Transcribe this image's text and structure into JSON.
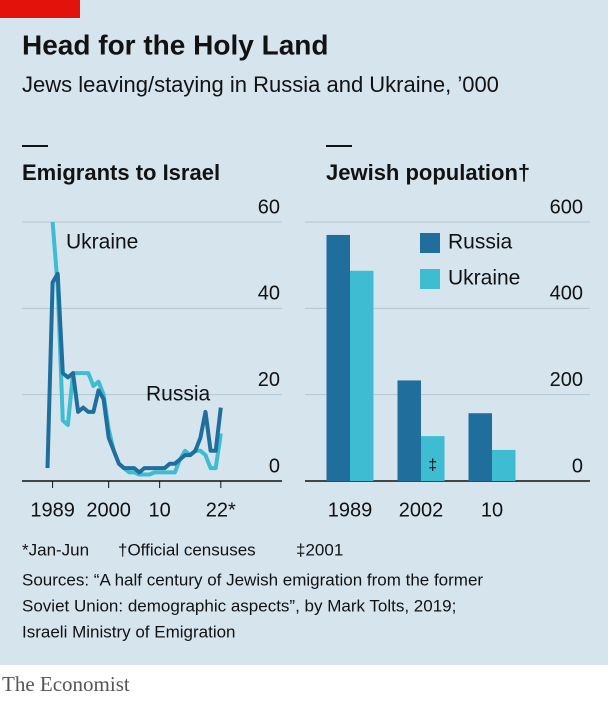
{
  "header": {
    "title": "Head for the Holy Land",
    "subtitle": "Jews leaving/staying in Russia and Ukraine, ’000"
  },
  "chart_data": [
    {
      "type": "line",
      "title": "Emigrants to Israel",
      "x": [
        1988,
        1989,
        1990,
        1991,
        1992,
        1993,
        1994,
        1995,
        1996,
        1997,
        1998,
        1999,
        2000,
        2001,
        2002,
        2003,
        2004,
        2005,
        2006,
        2007,
        2008,
        2009,
        2010,
        2011,
        2012,
        2013,
        2014,
        2015,
        2016,
        2017,
        2018,
        2019,
        2020,
        2021,
        2022
      ],
      "series": [
        {
          "name": "Ukraine",
          "color": "#3ebcd2",
          "values": [
            null,
            60,
            45,
            14,
            13,
            25,
            25,
            25,
            25,
            22,
            23,
            20,
            12,
            7,
            4,
            3,
            2,
            2,
            1.5,
            1.5,
            1.5,
            2,
            2,
            2,
            2,
            2,
            5,
            7,
            6,
            7,
            7,
            6,
            3,
            3,
            11
          ]
        },
        {
          "name": "Russia",
          "color": "#1f6e9c",
          "values": [
            3,
            46,
            48,
            25,
            24,
            25,
            16,
            17,
            16,
            16,
            21,
            19,
            10,
            7,
            4,
            3,
            3,
            3,
            2,
            3,
            3,
            3,
            3,
            3,
            4,
            4,
            5,
            6,
            6,
            7,
            10,
            16,
            7,
            7,
            17
          ]
        }
      ],
      "xlim": [
        1983,
        2034
      ],
      "xticks": [
        1989,
        2000,
        {
          "value": 2010,
          "label": "10"
        },
        {
          "value": 2022,
          "label": "22*"
        }
      ],
      "ylim": [
        0,
        60
      ],
      "yticks": [
        0,
        20,
        40,
        60
      ],
      "grid": true
    },
    {
      "type": "bar",
      "title": "Jewish population†",
      "categories": [
        "1989",
        "2002",
        "10"
      ],
      "series": [
        {
          "name": "Russia",
          "color": "#1f6e9c",
          "values": [
            570,
            233,
            157
          ]
        },
        {
          "name": "Ukraine",
          "color": "#3ebcd2",
          "values": [
            487,
            104,
            72
          ]
        }
      ],
      "ylim": [
        0,
        600
      ],
      "yticks": [
        0,
        200,
        400,
        600
      ],
      "grid": true,
      "legend": "upper center",
      "annotation": "‡"
    }
  ],
  "footnotes": [
    "*Jan-Jun",
    "†Official censuses",
    "‡2001"
  ],
  "source": [
    "Sources: “A half century of Jewish emigration from the former",
    "Soviet Union: demographic aspects”, by Mark Tolts, 2019;",
    "Israeli Ministry of Emigration"
  ],
  "footer": "The Economist"
}
